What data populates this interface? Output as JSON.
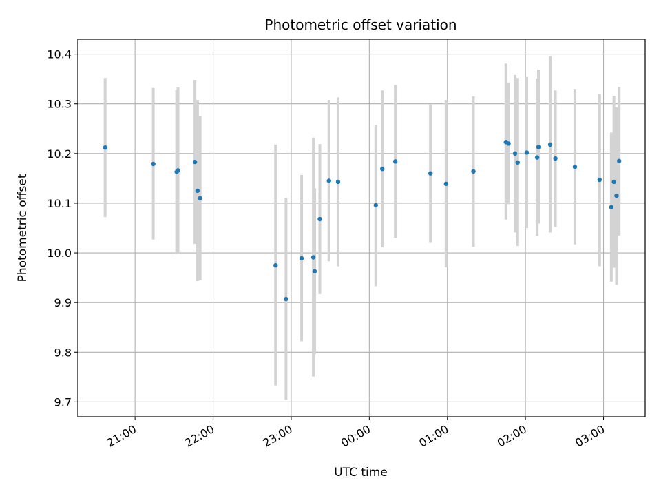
{
  "chart_data": {
    "type": "scatter",
    "title": "Photometric offset variation",
    "xlabel": "UTC time",
    "ylabel": "Photometric offset",
    "grid": true,
    "x_ticks": [
      "21:00",
      "22:00",
      "23:00",
      "00:00",
      "01:00",
      "02:00",
      "03:00"
    ],
    "y_ticks": [
      "9.7",
      "9.8",
      "9.9",
      "10.0",
      "10.1",
      "10.2",
      "10.3",
      "10.4"
    ],
    "xlim": [
      "20:16",
      "03:32"
    ],
    "ylim": [
      9.67,
      10.43
    ],
    "colors": {
      "point": "#1f77b4",
      "errorbar": "#d3d3d3",
      "grid": "#b0b0b0"
    },
    "series": [
      {
        "points": [
          {
            "x": "20:37",
            "y": 10.212,
            "lo": 10.072,
            "hi": 10.352
          },
          {
            "x": "21:14",
            "y": 10.179,
            "lo": 10.027,
            "hi": 10.332
          },
          {
            "x": "21:32",
            "y": 10.163,
            "lo": 9.998,
            "hi": 10.328
          },
          {
            "x": "21:33",
            "y": 10.166,
            "lo": 9.999,
            "hi": 10.333
          },
          {
            "x": "21:46",
            "y": 10.183,
            "lo": 10.018,
            "hi": 10.348
          },
          {
            "x": "21:48",
            "y": 10.125,
            "lo": 9.943,
            "hi": 10.308
          },
          {
            "x": "21:50",
            "y": 10.11,
            "lo": 9.945,
            "hi": 10.276
          },
          {
            "x": "22:48",
            "y": 9.975,
            "lo": 9.733,
            "hi": 10.218
          },
          {
            "x": "22:56",
            "y": 9.907,
            "lo": 9.704,
            "hi": 10.11
          },
          {
            "x": "23:08",
            "y": 9.989,
            "lo": 9.822,
            "hi": 10.157
          },
          {
            "x": "23:17",
            "y": 9.991,
            "lo": 9.751,
            "hi": 10.232
          },
          {
            "x": "23:18",
            "y": 9.963,
            "lo": 9.796,
            "hi": 10.13
          },
          {
            "x": "23:22",
            "y": 10.068,
            "lo": 9.917,
            "hi": 10.219
          },
          {
            "x": "23:29",
            "y": 10.145,
            "lo": 9.983,
            "hi": 10.308
          },
          {
            "x": "23:36",
            "y": 10.143,
            "lo": 9.973,
            "hi": 10.313
          },
          {
            "x": "00:05",
            "y": 10.096,
            "lo": 9.933,
            "hi": 10.258
          },
          {
            "x": "00:10",
            "y": 10.169,
            "lo": 10.011,
            "hi": 10.327
          },
          {
            "x": "00:20",
            "y": 10.184,
            "lo": 10.03,
            "hi": 10.338
          },
          {
            "x": "00:47",
            "y": 10.16,
            "lo": 10.02,
            "hi": 10.299
          },
          {
            "x": "00:59",
            "y": 10.139,
            "lo": 9.971,
            "hi": 10.308
          },
          {
            "x": "01:20",
            "y": 10.164,
            "lo": 10.012,
            "hi": 10.315
          },
          {
            "x": "01:45",
            "y": 10.223,
            "lo": 10.067,
            "hi": 10.381
          },
          {
            "x": "01:47",
            "y": 10.22,
            "lo": 10.098,
            "hi": 10.343
          },
          {
            "x": "01:52",
            "y": 10.2,
            "lo": 10.041,
            "hi": 10.358
          },
          {
            "x": "01:54",
            "y": 10.182,
            "lo": 10.014,
            "hi": 10.352
          },
          {
            "x": "02:01",
            "y": 10.202,
            "lo": 10.05,
            "hi": 10.354
          },
          {
            "x": "02:09",
            "y": 10.192,
            "lo": 10.034,
            "hi": 10.351
          },
          {
            "x": "02:10",
            "y": 10.213,
            "lo": 10.059,
            "hi": 10.369
          },
          {
            "x": "02:19",
            "y": 10.218,
            "lo": 10.041,
            "hi": 10.396
          },
          {
            "x": "02:23",
            "y": 10.19,
            "lo": 10.052,
            "hi": 10.327
          },
          {
            "x": "02:38",
            "y": 10.173,
            "lo": 10.017,
            "hi": 10.33
          },
          {
            "x": "02:57",
            "y": 10.147,
            "lo": 9.973,
            "hi": 10.32
          },
          {
            "x": "03:06",
            "y": 10.092,
            "lo": 9.942,
            "hi": 10.242
          },
          {
            "x": "03:08",
            "y": 10.143,
            "lo": 9.97,
            "hi": 10.316
          },
          {
            "x": "03:10",
            "y": 10.115,
            "lo": 9.936,
            "hi": 10.293
          },
          {
            "x": "03:12",
            "y": 10.185,
            "lo": 10.035,
            "hi": 10.334
          }
        ]
      }
    ]
  }
}
